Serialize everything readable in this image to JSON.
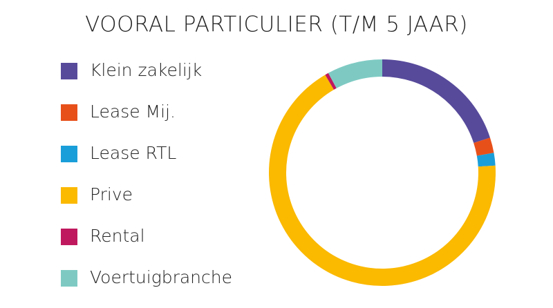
{
  "chart_data": {
    "type": "donut",
    "title": "VOORAL PARTICULIER (T/M 5 JAAR)",
    "categories": [
      "Klein zakelijk",
      "Lease Mij.",
      "Lease RTL",
      "Prive",
      "Rental",
      "Voertuigbranche"
    ],
    "values": [
      20,
      2.2,
      1.8,
      67.6,
      0.5,
      7.9
    ],
    "colors": [
      "#574a9b",
      "#e8501a",
      "#1a9ed9",
      "#fbb900",
      "#c0185e",
      "#7ecac3"
    ]
  }
}
